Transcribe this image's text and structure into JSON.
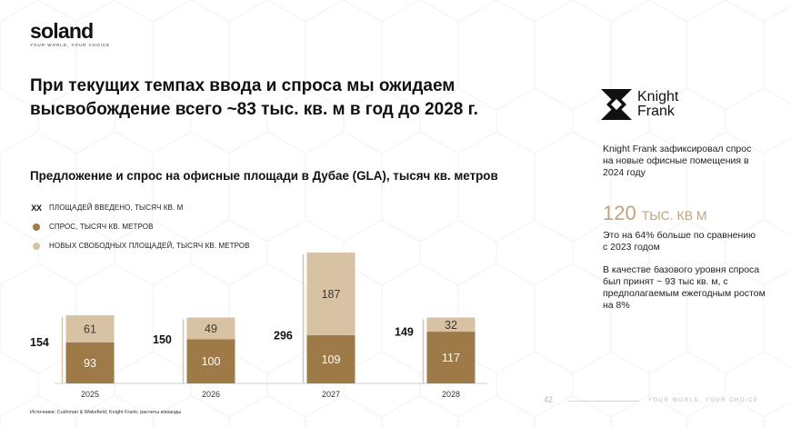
{
  "brand": {
    "name": "soland",
    "tagline": "YOUR WORLD, YOUR CHOICE"
  },
  "headline": "При текущих темпах ввода и спроса мы ожидаем высвобождение всего ~83 тыс. кв. м в год до 2028 г.",
  "chart_data": {
    "type": "bar",
    "stacked": true,
    "title": "Предложение и спрос на  офисные площади в Дубае (GLA), тысяч кв. метров",
    "categories": [
      "2025",
      "2026",
      "2027",
      "2028"
    ],
    "series": [
      {
        "name": "СПРОС, ТЫСЯЧ КВ. МЕТРОВ",
        "values": [
          93,
          100,
          109,
          117
        ],
        "color": "#9d7a47"
      },
      {
        "name": "НОВЫХ СВОБОДНЫХ ПЛОЩАДЕЙ, ТЫСЯЧ КВ. МЕТРОВ",
        "values": [
          61,
          49,
          187,
          32
        ],
        "color": "#d7c2a4"
      }
    ],
    "totals": {
      "name": "ПЛОЩАДЕЙ ВВЕДЕНО, ТЫСЯЧ КВ. М",
      "marker": "XX",
      "values": [
        154,
        150,
        296,
        149
      ]
    },
    "grid": false
  },
  "sidebar": {
    "logo_line1": "Knight",
    "logo_line2": "Frank",
    "text1": "Knight Frank зафиксировал спрос на новые офисные помещения в 2024 году",
    "big_number": "120",
    "big_unit": "ТЫС. КВ М",
    "text2": "Это на 64% больше по сравнению с 2023 годом",
    "text3": "В качестве базового уровня спроса был принят ~ 93 тыс кв. м, с предполагаемым ежегодным ростом на 8%"
  },
  "source": "Источники: Cushman & Wakefield; Knight Frank; расчеты команды",
  "page_number": "42",
  "footer_tagline": "YOUR WORLD, YOUR CHOICE",
  "colors": {
    "demand": "#9d7a47",
    "vacant": "#d7c2a4",
    "accent": "#c0a27d"
  }
}
